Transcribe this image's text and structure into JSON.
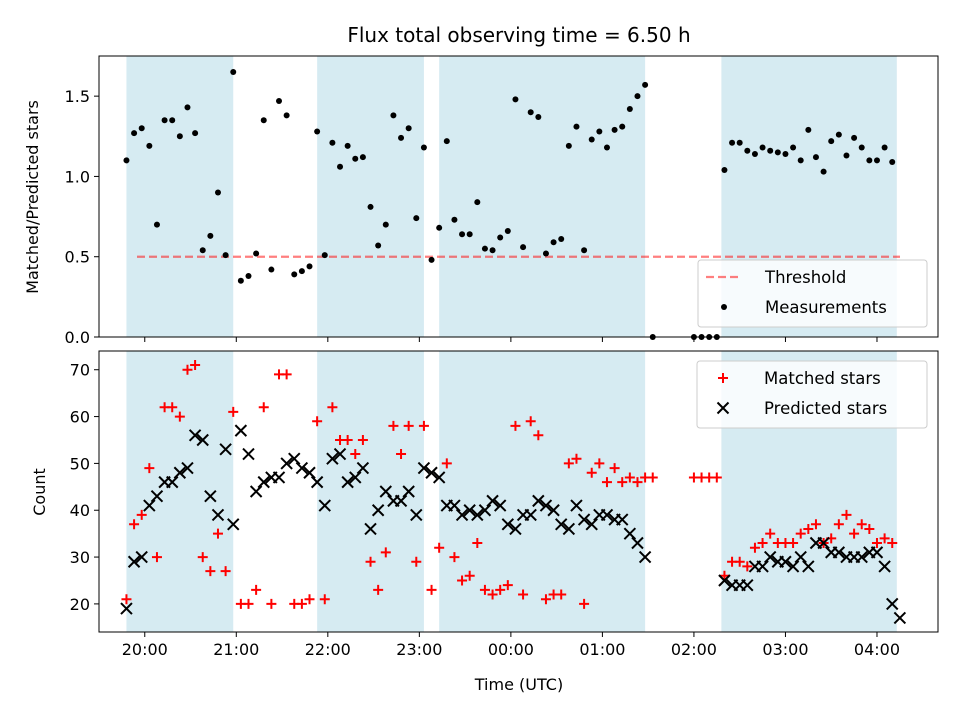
{
  "title": "Flux total observing time = 6.50 h",
  "colors": {
    "band": "#add8e6",
    "threshold": "#ff0000",
    "measurement": "#000000",
    "matched": "#ff0000",
    "predicted": "#000000"
  },
  "chart_data": [
    {
      "type": "scatter",
      "title": "Flux total observing time = 6.50 h",
      "xlabel": "",
      "ylabel": "Matched/Predicted stars",
      "xlim": [
        "19:30",
        "04:40"
      ],
      "ylim": [
        0,
        1.75
      ],
      "xticks": [
        "20:00",
        "21:00",
        "22:00",
        "23:00",
        "00:00",
        "01:00",
        "02:00",
        "03:00",
        "04:00"
      ],
      "yticks": [
        "0.0",
        "0.5",
        "1.0",
        "1.5"
      ],
      "grid": false,
      "legend_position": "lower-right",
      "shaded_intervals": [
        [
          "19:48",
          "20:58"
        ],
        [
          "21:53",
          "23:03"
        ],
        [
          "23:13",
          "01:28"
        ],
        [
          "02:18",
          "04:13"
        ]
      ],
      "threshold": {
        "name": "Threshold",
        "value": 0.5
      },
      "series": [
        {
          "name": "Measurements",
          "x": [
            "19:48",
            "19:53",
            "19:58",
            "20:03",
            "20:08",
            "20:13",
            "20:18",
            "20:23",
            "20:28",
            "20:33",
            "20:38",
            "20:43",
            "20:48",
            "20:53",
            "20:58",
            "21:03",
            "21:08",
            "21:13",
            "21:18",
            "21:23",
            "21:28",
            "21:33",
            "21:38",
            "21:43",
            "21:48",
            "21:53",
            "21:58",
            "22:03",
            "22:08",
            "22:13",
            "22:18",
            "22:23",
            "22:28",
            "22:33",
            "22:38",
            "22:43",
            "22:48",
            "22:53",
            "22:58",
            "23:03",
            "23:08",
            "23:13",
            "23:18",
            "23:23",
            "23:28",
            "23:33",
            "23:38",
            "23:43",
            "23:48",
            "23:53",
            "23:58",
            "00:03",
            "00:08",
            "00:13",
            "00:18",
            "00:23",
            "00:28",
            "00:33",
            "00:38",
            "00:43",
            "00:48",
            "00:53",
            "00:58",
            "01:03",
            "01:08",
            "01:13",
            "01:18",
            "01:23",
            "01:28",
            "01:33",
            "02:00",
            "02:05",
            "02:10",
            "02:15",
            "02:20",
            "02:25",
            "02:30",
            "02:35",
            "02:40",
            "02:45",
            "02:50",
            "02:55",
            "03:00",
            "03:05",
            "03:10",
            "03:15",
            "03:20",
            "03:25",
            "03:30",
            "03:35",
            "03:40",
            "03:45",
            "03:50",
            "03:55",
            "04:00",
            "04:05",
            "04:10"
          ],
          "y": [
            1.1,
            1.27,
            1.3,
            1.19,
            0.7,
            1.35,
            1.35,
            1.25,
            1.43,
            1.27,
            0.54,
            0.63,
            0.9,
            0.51,
            1.65,
            0.35,
            0.38,
            0.52,
            1.35,
            0.42,
            1.47,
            1.38,
            0.39,
            0.41,
            0.44,
            1.28,
            0.51,
            1.21,
            1.06,
            1.19,
            1.11,
            1.12,
            0.81,
            0.57,
            0.7,
            1.38,
            1.24,
            1.3,
            0.74,
            1.18,
            0.48,
            0.68,
            1.22,
            0.73,
            0.64,
            0.64,
            0.84,
            0.55,
            0.54,
            0.62,
            0.66,
            1.48,
            0.56,
            1.4,
            1.37,
            0.52,
            0.59,
            0.61,
            1.19,
            1.31,
            0.54,
            1.23,
            1.28,
            1.18,
            1.29,
            1.31,
            1.42,
            1.5,
            1.57,
            0.0,
            0.0,
            0.0,
            0.0,
            0.0,
            1.04,
            1.21,
            1.21,
            1.16,
            1.14,
            1.18,
            1.16,
            1.15,
            1.14,
            1.18,
            1.1,
            1.29,
            1.12,
            1.03,
            1.22,
            1.26,
            1.13,
            1.24,
            1.18,
            1.1,
            1.1,
            1.18,
            1.09
          ]
        }
      ]
    },
    {
      "type": "scatter",
      "title": "",
      "xlabel": "Time (UTC)",
      "ylabel": "Count",
      "xlim": [
        "19:30",
        "04:40"
      ],
      "ylim": [
        14,
        74
      ],
      "xticks": [
        "20:00",
        "21:00",
        "22:00",
        "23:00",
        "00:00",
        "01:00",
        "02:00",
        "03:00",
        "04:00"
      ],
      "yticks": [
        "20",
        "30",
        "40",
        "50",
        "60",
        "70"
      ],
      "grid": false,
      "legend_position": "upper-right",
      "shaded_intervals": [
        [
          "19:48",
          "20:58"
        ],
        [
          "21:53",
          "23:03"
        ],
        [
          "23:13",
          "01:28"
        ],
        [
          "02:18",
          "04:13"
        ]
      ],
      "series": [
        {
          "name": "Matched stars",
          "x": [
            "19:48",
            "19:53",
            "19:58",
            "20:03",
            "20:08",
            "20:13",
            "20:18",
            "20:23",
            "20:28",
            "20:33",
            "20:38",
            "20:43",
            "20:48",
            "20:53",
            "20:58",
            "21:03",
            "21:08",
            "21:13",
            "21:18",
            "21:23",
            "21:28",
            "21:33",
            "21:38",
            "21:43",
            "21:48",
            "21:53",
            "21:58",
            "22:03",
            "22:08",
            "22:13",
            "22:18",
            "22:23",
            "22:28",
            "22:33",
            "22:38",
            "22:43",
            "22:48",
            "22:53",
            "22:58",
            "23:03",
            "23:08",
            "23:13",
            "23:18",
            "23:23",
            "23:28",
            "23:33",
            "23:38",
            "23:43",
            "23:48",
            "23:53",
            "23:58",
            "00:03",
            "00:08",
            "00:13",
            "00:18",
            "00:23",
            "00:28",
            "00:33",
            "00:38",
            "00:43",
            "00:48",
            "00:53",
            "00:58",
            "01:03",
            "01:08",
            "01:13",
            "01:18",
            "01:23",
            "01:28",
            "01:33",
            "02:00",
            "02:05",
            "02:10",
            "02:15",
            "02:20",
            "02:25",
            "02:30",
            "02:35",
            "02:40",
            "02:45",
            "02:50",
            "02:55",
            "03:00",
            "03:05",
            "03:10",
            "03:15",
            "03:20",
            "03:25",
            "03:30",
            "03:35",
            "03:40",
            "03:45",
            "03:50",
            "03:55",
            "04:00",
            "04:05",
            "04:10"
          ],
          "y": [
            21,
            37,
            39,
            49,
            30,
            62,
            62,
            60,
            70,
            71,
            30,
            27,
            35,
            27,
            61,
            20,
            20,
            23,
            62,
            20,
            69,
            69,
            20,
            20,
            21,
            59,
            21,
            62,
            55,
            55,
            52,
            55,
            29,
            23,
            31,
            58,
            52,
            58,
            29,
            58,
            23,
            32,
            50,
            30,
            25,
            26,
            33,
            23,
            22,
            23,
            24,
            58,
            22,
            59,
            56,
            21,
            22,
            22,
            50,
            51,
            20,
            48,
            50,
            46,
            49,
            46,
            47,
            46,
            47,
            47,
            47,
            47,
            47,
            47,
            26,
            29,
            29,
            28,
            32,
            33,
            35,
            33,
            33,
            33,
            35,
            36,
            37,
            33,
            34,
            37,
            39,
            35,
            37,
            36,
            33,
            34,
            33
          ]
        },
        {
          "name": "Predicted stars",
          "x": [
            "19:48",
            "19:53",
            "19:58",
            "20:03",
            "20:08",
            "20:13",
            "20:18",
            "20:23",
            "20:28",
            "20:33",
            "20:38",
            "20:43",
            "20:48",
            "20:53",
            "20:58",
            "21:03",
            "21:08",
            "21:13",
            "21:18",
            "21:23",
            "21:28",
            "21:33",
            "21:38",
            "21:43",
            "21:48",
            "21:53",
            "21:58",
            "22:03",
            "22:08",
            "22:13",
            "22:18",
            "22:23",
            "22:28",
            "22:33",
            "22:38",
            "22:43",
            "22:48",
            "22:53",
            "22:58",
            "23:03",
            "23:08",
            "23:13",
            "23:18",
            "23:23",
            "23:28",
            "23:33",
            "23:38",
            "23:43",
            "23:48",
            "23:53",
            "23:58",
            "00:03",
            "00:08",
            "00:13",
            "00:18",
            "00:23",
            "00:28",
            "00:33",
            "00:38",
            "00:43",
            "00:48",
            "00:53",
            "00:58",
            "01:03",
            "01:08",
            "01:13",
            "01:18",
            "01:23",
            "01:28",
            "02:20",
            "02:25",
            "02:30",
            "02:35",
            "02:40",
            "02:45",
            "02:50",
            "02:55",
            "03:00",
            "03:05",
            "03:10",
            "03:15",
            "03:20",
            "03:25",
            "03:30",
            "03:35",
            "03:40",
            "03:45",
            "03:50",
            "03:55",
            "04:00",
            "04:05",
            "04:10",
            "04:15"
          ],
          "y": [
            19,
            29,
            30,
            41,
            43,
            46,
            46,
            48,
            49,
            56,
            55,
            43,
            39,
            53,
            37,
            57,
            52,
            44,
            46,
            47,
            47,
            50,
            51,
            49,
            48,
            46,
            41,
            51,
            52,
            46,
            47,
            49,
            36,
            40,
            44,
            42,
            42,
            44,
            39,
            49,
            48,
            47,
            41,
            41,
            39,
            40,
            39,
            40,
            42,
            41,
            37,
            36,
            39,
            39,
            42,
            41,
            40,
            37,
            36,
            41,
            38,
            37,
            39,
            39,
            38,
            38,
            35,
            33,
            30,
            25,
            24,
            24,
            24,
            28,
            28,
            30,
            29,
            29,
            28,
            30,
            28,
            33,
            33,
            31,
            31,
            30,
            30,
            30,
            31,
            31,
            28,
            20,
            17
          ]
        }
      ]
    }
  ]
}
